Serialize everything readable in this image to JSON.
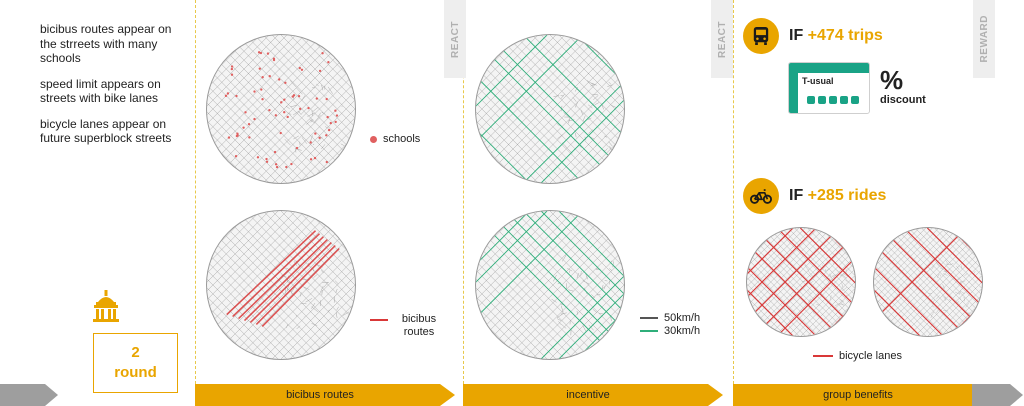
{
  "notes": [
    "bicibus routes appear on the strreets with many schools",
    "speed limit appears on streets with bike lanes",
    "bicycle lanes appear on future superblock streets"
  ],
  "round": {
    "number": "2",
    "label": "round"
  },
  "tabs": {
    "react1": "REACT",
    "react2": "REACT",
    "reward": "REWARD"
  },
  "legends": {
    "schools": "schools",
    "bicibus": "bicibus routes",
    "speed_50": "50km/h",
    "speed_30": "30km/h",
    "bicycle_lanes": "bicycle lanes"
  },
  "benefits": {
    "bus": {
      "prefix": "IF",
      "value": "+474 trips"
    },
    "bike": {
      "prefix": "IF",
      "value": "+285 rides"
    },
    "ticket_name": "T-usual",
    "discount_symbol": "%",
    "discount_label": "discount"
  },
  "stages": [
    "bicibus routes",
    "incentive",
    "group benefits"
  ],
  "colors": {
    "accent": "#e9a500",
    "school_red": "#e06060",
    "route_red": "#d93838",
    "speed_dark": "#555555",
    "speed_green": "#2fae7a",
    "ticket_green": "#19a386",
    "arrow_grey": "#9e9e9e"
  }
}
